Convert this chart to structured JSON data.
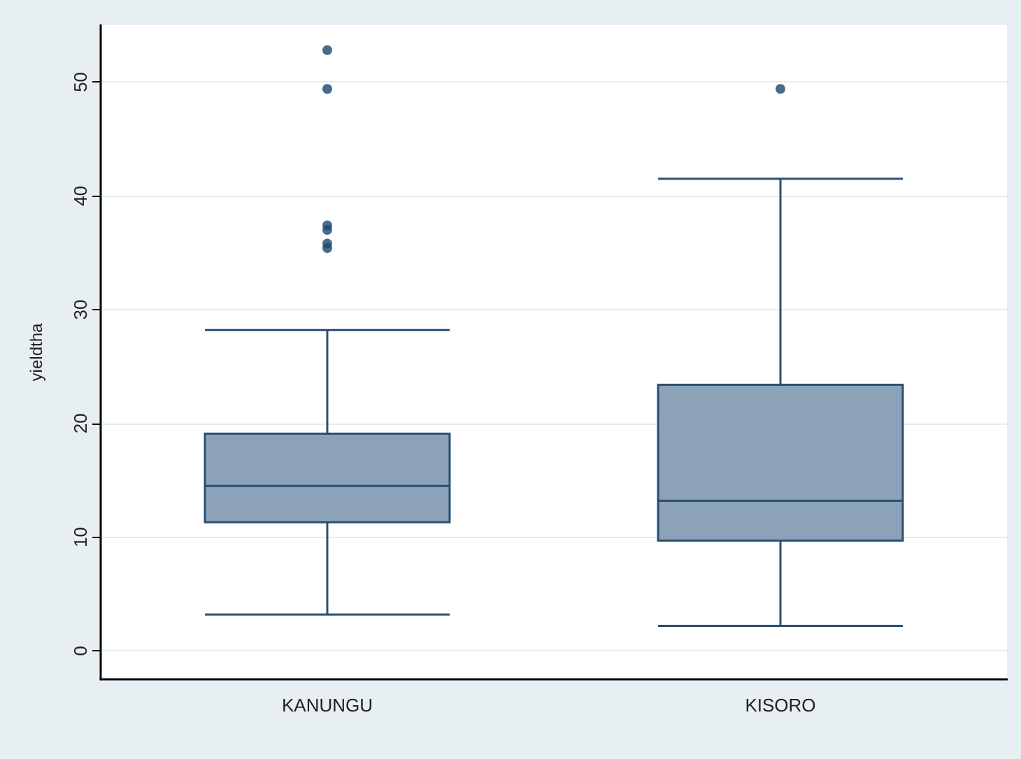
{
  "chart_data": {
    "type": "box",
    "ylabel": "yieldtha",
    "categories": [
      "KANUNGU",
      "KISORO"
    ],
    "boxes": [
      {
        "low": 3.2,
        "q1": 11.3,
        "median": 14.5,
        "q3": 19.1,
        "high": 28.2,
        "outliers": [
          52.8,
          49.4,
          37.4,
          37.0,
          35.8,
          35.4
        ]
      },
      {
        "low": 2.2,
        "q1": 9.7,
        "median": 13.2,
        "q3": 23.4,
        "high": 41.5,
        "outliers": [
          49.4
        ]
      }
    ],
    "color": "#8ba2b8",
    "ylim": [
      -2.5,
      55
    ],
    "yticks": [
      0,
      10,
      20,
      30,
      40,
      50
    ],
    "grid": "y"
  }
}
